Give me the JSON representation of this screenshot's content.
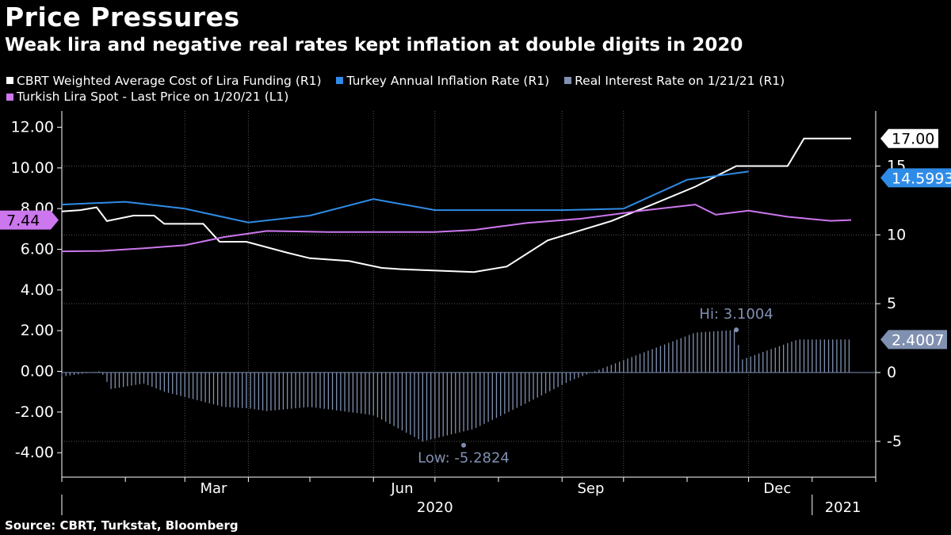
{
  "header": {
    "title": "Price Pressures",
    "subtitle": "Weak lira and negative real rates kept inflation at double digits in 2020"
  },
  "legend": [
    {
      "label": "CBRT Weighted Average Cost of Lira Funding (R1)",
      "color": "#ffffff"
    },
    {
      "label": "Turkey Annual Inflation Rate (R1)",
      "color": "#2f8ce6"
    },
    {
      "label": "Real Interest Rate on 1/21/21 (R1)",
      "color": "#8090b0"
    },
    {
      "label": "Turkish Lira Spot - Last Price on 1/20/21 (L1)",
      "color": "#cc77ee"
    }
  ],
  "source": "Source: CBRT, Turkstat, Bloomberg",
  "chart_data": {
    "type": "line",
    "x_ticks": [
      "Mar",
      "Jun",
      "Sep",
      "Dec"
    ],
    "x_years": [
      "2020",
      "2021"
    ],
    "left_axis": {
      "ticks": [
        "12.00",
        "10.00",
        "8.00",
        "6.00",
        "4.00",
        "2.00",
        "0.00",
        "-2.00",
        "-4.00"
      ],
      "ylim": [
        -5.2,
        12.8
      ]
    },
    "right_axis": {
      "ticks": [
        "15",
        "10",
        "5",
        "0",
        "-5"
      ],
      "ylim": [
        -7.6,
        19.0
      ]
    },
    "last_value_tags": [
      {
        "text": "17.00",
        "series": "CBRT Weighted Average Cost of Lira Funding (R1)"
      },
      {
        "text": "14.5993",
        "series": "Turkey Annual Inflation Rate (R1)"
      },
      {
        "text": "2.4007",
        "series": "Real Interest Rate on 1/21/21 (R1)"
      },
      {
        "text": "7.44",
        "series": "Turkish Lira Spot - Last Price on 1/20/21 (L1)"
      }
    ],
    "annotations": {
      "high": "Hi: 3.1004",
      "low": "Low: -5.2824"
    },
    "series": [
      {
        "name": "CBRT Weighted Average Cost of Lira Funding (R1)",
        "axis": "right",
        "color": "#ffffff",
        "kind": "line",
        "points": [
          [
            "2020-01-01",
            11.7
          ],
          [
            "2020-01-10",
            11.8
          ],
          [
            "2020-01-18",
            12.0
          ],
          [
            "2020-01-23",
            11.0
          ],
          [
            "2020-02-05",
            11.4
          ],
          [
            "2020-02-15",
            11.4
          ],
          [
            "2020-02-20",
            10.8
          ],
          [
            "2020-03-10",
            10.8
          ],
          [
            "2020-03-18",
            9.5
          ],
          [
            "2020-03-31",
            9.5
          ],
          [
            "2020-04-20",
            8.7
          ],
          [
            "2020-05-01",
            8.3
          ],
          [
            "2020-05-20",
            8.1
          ],
          [
            "2020-06-05",
            7.6
          ],
          [
            "2020-06-15",
            7.5
          ],
          [
            "2020-07-20",
            7.3
          ],
          [
            "2020-08-05",
            7.7
          ],
          [
            "2020-08-25",
            9.6
          ],
          [
            "2020-09-05",
            10.1
          ],
          [
            "2020-09-25",
            11.0
          ],
          [
            "2020-10-15",
            12.2
          ],
          [
            "2020-11-05",
            13.5
          ],
          [
            "2020-11-25",
            15.0
          ],
          [
            "2020-12-20",
            15.0
          ],
          [
            "2020-12-28",
            17.0
          ],
          [
            "2021-01-20",
            17.0
          ]
        ]
      },
      {
        "name": "Turkey Annual Inflation Rate (R1)",
        "axis": "right",
        "color": "#2f8ce6",
        "kind": "line",
        "points": [
          [
            "2020-01-01",
            12.2
          ],
          [
            "2020-02-01",
            12.4
          ],
          [
            "2020-03-01",
            11.9
          ],
          [
            "2020-04-01",
            10.9
          ],
          [
            "2020-05-01",
            11.4
          ],
          [
            "2020-06-01",
            12.6
          ],
          [
            "2020-07-01",
            11.8
          ],
          [
            "2020-08-01",
            11.8
          ],
          [
            "2020-09-01",
            11.8
          ],
          [
            "2020-10-01",
            11.9
          ],
          [
            "2020-11-01",
            14.0
          ],
          [
            "2020-12-01",
            14.6
          ]
        ]
      },
      {
        "name": "Turkish Lira Spot - Last Price on 1/20/21 (L1)",
        "axis": "left",
        "color": "#cc77ee",
        "kind": "line",
        "points": [
          [
            "2020-01-01",
            5.9
          ],
          [
            "2020-01-20",
            5.92
          ],
          [
            "2020-02-10",
            6.05
          ],
          [
            "2020-03-01",
            6.2
          ],
          [
            "2020-03-20",
            6.6
          ],
          [
            "2020-04-10",
            6.9
          ],
          [
            "2020-05-10",
            6.85
          ],
          [
            "2020-06-01",
            6.85
          ],
          [
            "2020-07-01",
            6.85
          ],
          [
            "2020-07-20",
            6.95
          ],
          [
            "2020-08-15",
            7.3
          ],
          [
            "2020-09-10",
            7.5
          ],
          [
            "2020-10-10",
            7.9
          ],
          [
            "2020-11-05",
            8.2
          ],
          [
            "2020-11-15",
            7.7
          ],
          [
            "2020-12-01",
            7.9
          ],
          [
            "2020-12-20",
            7.6
          ],
          [
            "2021-01-10",
            7.4
          ],
          [
            "2021-01-20",
            7.44
          ]
        ]
      },
      {
        "name": "Real Interest Rate on 1/21/21 (R1)",
        "axis": "right",
        "color": "#8090b0",
        "kind": "bar",
        "points": [
          [
            "2020-01-01",
            -0.3
          ],
          [
            "2020-01-20",
            0.1
          ],
          [
            "2020-01-25",
            -1.2
          ],
          [
            "2020-02-10",
            -0.8
          ],
          [
            "2020-02-20",
            -1.4
          ],
          [
            "2020-03-20",
            -2.5
          ],
          [
            "2020-04-01",
            -2.6
          ],
          [
            "2020-04-10",
            -2.8
          ],
          [
            "2020-05-01",
            -2.5
          ],
          [
            "2020-06-01",
            -3.1
          ],
          [
            "2020-06-25",
            -5.0
          ],
          [
            "2020-07-20",
            -4.1
          ],
          [
            "2020-08-15",
            -2.2
          ],
          [
            "2020-09-05",
            -0.6
          ],
          [
            "2020-10-01",
            0.9
          ],
          [
            "2020-11-05",
            2.9
          ],
          [
            "2020-11-25",
            3.1
          ],
          [
            "2020-11-27",
            0.9
          ],
          [
            "2020-12-25",
            2.4
          ],
          [
            "2021-01-20",
            2.4
          ]
        ]
      }
    ]
  }
}
